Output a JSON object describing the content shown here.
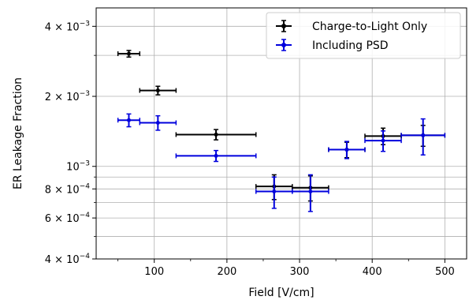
{
  "chart_data": {
    "type": "scatter",
    "xlabel": "Field [V/cm]",
    "ylabel": "ER Leakage Fraction",
    "xlim": [
      20,
      530
    ],
    "ylim": [
      0.0004,
      0.0048
    ],
    "yscale": "log",
    "grid": true,
    "legend_position": "top-right",
    "x_ticks": [
      100,
      200,
      300,
      400,
      500
    ],
    "x_tick_labels": [
      "100",
      "200",
      "300",
      "400",
      "500"
    ],
    "y_major_ticks": [
      0.0004,
      0.0006,
      0.0008,
      0.001,
      0.002,
      0.004
    ],
    "y_minor_ticks": [
      0.0005,
      0.0007,
      0.0009,
      0.003
    ],
    "y_tick_labels": [
      {
        "mant": "4",
        "exp": "−4"
      },
      {
        "mant": "6",
        "exp": "−4"
      },
      {
        "mant": "8",
        "exp": "−4"
      },
      {
        "mant": "",
        "exp": "−3"
      },
      {
        "mant": "2",
        "exp": "−3"
      },
      {
        "mant": "4",
        "exp": "−3"
      }
    ],
    "series": [
      {
        "name": "Charge-to-Light Only",
        "color": "#000000",
        "points": [
          {
            "x": 65,
            "x_err": 15,
            "y": 0.00305,
            "y_lo": 0.00295,
            "y_hi": 0.00315
          },
          {
            "x": 105,
            "x_err": 25,
            "y": 0.00212,
            "y_lo": 0.00203,
            "y_hi": 0.00221
          },
          {
            "x": 185,
            "x_err": 55,
            "y": 0.00137,
            "y_lo": 0.0013,
            "y_hi": 0.00144
          },
          {
            "x": 265,
            "x_err": 25,
            "y": 0.00082,
            "y_lo": 0.00072,
            "y_hi": 0.00092
          },
          {
            "x": 315,
            "x_err": 25,
            "y": 0.00081,
            "y_lo": 0.00071,
            "y_hi": 0.00091
          },
          {
            "x": 365,
            "x_err": 25,
            "y": 0.00118,
            "y_lo": 0.00109,
            "y_hi": 0.00127
          },
          {
            "x": 415,
            "x_err": 25,
            "y": 0.00135,
            "y_lo": 0.00124,
            "y_hi": 0.00146
          },
          {
            "x": 470,
            "x_err": 30,
            "y": 0.00136,
            "y_lo": 0.00122,
            "y_hi": 0.0015
          }
        ]
      },
      {
        "name": "Including PSD",
        "color": "#0000dd",
        "points": [
          {
            "x": 65,
            "x_err": 15,
            "y": 0.00158,
            "y_lo": 0.00148,
            "y_hi": 0.00168
          },
          {
            "x": 105,
            "x_err": 25,
            "y": 0.00154,
            "y_lo": 0.00143,
            "y_hi": 0.00165
          },
          {
            "x": 185,
            "x_err": 55,
            "y": 0.00111,
            "y_lo": 0.00105,
            "y_hi": 0.00117
          },
          {
            "x": 265,
            "x_err": 25,
            "y": 0.00078,
            "y_lo": 0.00066,
            "y_hi": 0.0009
          },
          {
            "x": 315,
            "x_err": 25,
            "y": 0.00078,
            "y_lo": 0.00064,
            "y_hi": 0.00092
          },
          {
            "x": 365,
            "x_err": 25,
            "y": 0.00118,
            "y_lo": 0.00108,
            "y_hi": 0.00128
          },
          {
            "x": 415,
            "x_err": 25,
            "y": 0.00129,
            "y_lo": 0.00116,
            "y_hi": 0.00142
          },
          {
            "x": 470,
            "x_err": 30,
            "y": 0.00136,
            "y_lo": 0.00112,
            "y_hi": 0.0016
          }
        ]
      }
    ]
  }
}
